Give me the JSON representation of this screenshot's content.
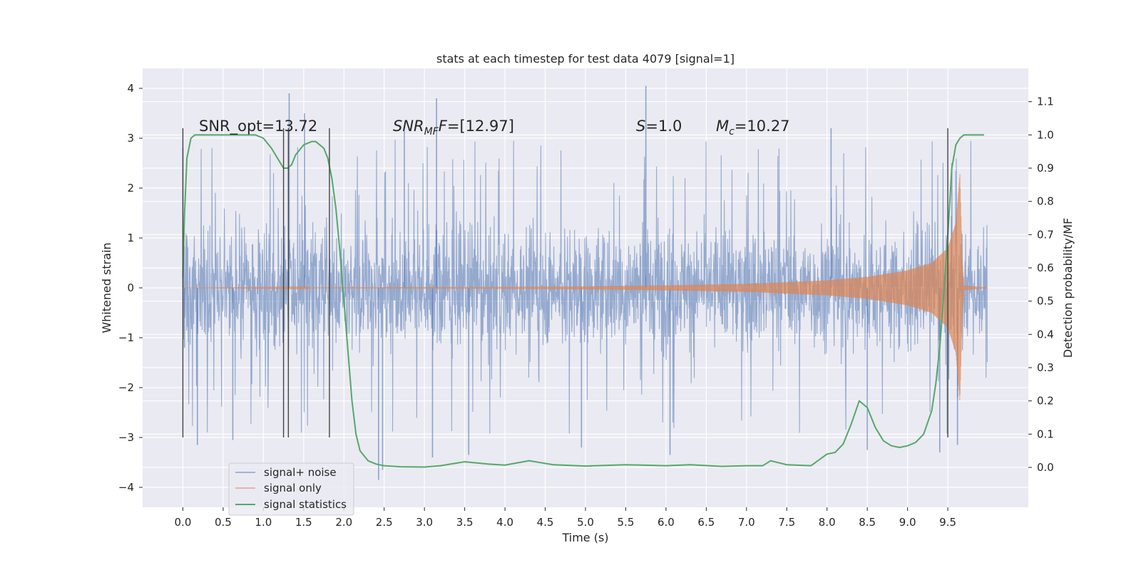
{
  "chart_data": {
    "type": "line",
    "title": "stats at each timestep for test data 4079 [signal=1]",
    "xlabel": "Time (s)",
    "ylabel": "Whitened strain",
    "ylabel_right": "Detection probability/MF",
    "xlim": [
      -0.5,
      10.5
    ],
    "ylim": [
      -4.4,
      4.4
    ],
    "ylim_right": [
      -0.12,
      1.2
    ],
    "x_ticks": [
      "0.0",
      "0.5",
      "1.0",
      "1.5",
      "2.0",
      "2.5",
      "3.0",
      "3.5",
      "4.0",
      "4.5",
      "5.0",
      "5.5",
      "6.0",
      "6.5",
      "7.0",
      "7.5",
      "8.0",
      "8.5",
      "9.0",
      "9.5"
    ],
    "y_ticks": [
      "−4",
      "−3",
      "−2",
      "−1",
      "0",
      "1",
      "2",
      "3",
      "4"
    ],
    "y_ticks_right": [
      "0.0",
      "0.1",
      "0.2",
      "0.3",
      "0.4",
      "0.5",
      "0.6",
      "0.7",
      "0.8",
      "0.9",
      "1.0",
      "1.1"
    ],
    "grid": true,
    "legend_position": "lower-left",
    "annotations": {
      "snr_opt": "SNR_opt=13.72",
      "snr_mf_main": "SNR",
      "snr_mf_sub": "MF",
      "snr_mf_value": "=[12.97]",
      "s_main": "S",
      "s_value": "=1.0",
      "mc_main": "M",
      "mc_sub": "c",
      "mc_value": "=10.27"
    },
    "vertical_markers": {
      "x": [
        0.0,
        1.25,
        1.31,
        1.82,
        9.5
      ],
      "y_range": [
        -3.0,
        3.2
      ]
    },
    "series": [
      {
        "name": "signal+ noise",
        "color": "#4c72b0",
        "description_values": {
          "x_range": [
            0.0,
            9.99
          ],
          "typical_envelope": [
            -1.3,
            1.4
          ],
          "spikes": [
            {
              "x": 0.0,
              "y": 2.8
            },
            {
              "x": 0.02,
              "y": -1.2
            },
            {
              "x": 0.18,
              "y": -3.15
            },
            {
              "x": 0.62,
              "y": -3.05
            },
            {
              "x": 1.32,
              "y": 3.9
            },
            {
              "x": 1.51,
              "y": 3.5
            },
            {
              "x": 2.43,
              "y": -3.85
            },
            {
              "x": 2.48,
              "y": -3.65
            },
            {
              "x": 2.75,
              "y": 3.15
            },
            {
              "x": 3.15,
              "y": 3.8
            },
            {
              "x": 3.1,
              "y": -3.4
            },
            {
              "x": 3.55,
              "y": -3.35
            },
            {
              "x": 4.95,
              "y": -3.2
            },
            {
              "x": 5.75,
              "y": 4.05
            },
            {
              "x": 6.05,
              "y": -3.35
            },
            {
              "x": 8.05,
              "y": 3.2
            },
            {
              "x": 8.5,
              "y": -3.25
            },
            {
              "x": 9.4,
              "y": -3.3
            },
            {
              "x": 9.55,
              "y": 2.5
            },
            {
              "x": 9.62,
              "y": -3.15
            }
          ]
        }
      },
      {
        "name": "signal only",
        "color": "#dd8452",
        "envelope": {
          "x": [
            0.0,
            4.0,
            5.0,
            6.0,
            7.0,
            8.0,
            8.5,
            9.0,
            9.3,
            9.5,
            9.6,
            9.65,
            9.68,
            9.7,
            10.0
          ],
          "amp": [
            0.0,
            0.02,
            0.03,
            0.05,
            0.08,
            0.15,
            0.22,
            0.35,
            0.5,
            0.8,
            1.3,
            2.3,
            0.6,
            0.05,
            0.0
          ]
        }
      },
      {
        "name": "signal statistics",
        "color": "#55a868",
        "axis": "right",
        "x": [
          0.0,
          0.02,
          0.05,
          0.1,
          0.15,
          0.2,
          0.3,
          0.5,
          0.7,
          0.9,
          1.0,
          1.1,
          1.2,
          1.25,
          1.3,
          1.35,
          1.4,
          1.5,
          1.6,
          1.65,
          1.7,
          1.75,
          1.8,
          1.85,
          1.9,
          1.95,
          2.0,
          2.05,
          2.1,
          2.15,
          2.2,
          2.3,
          2.4,
          2.5,
          2.7,
          3.0,
          3.2,
          3.5,
          3.8,
          4.0,
          4.3,
          4.6,
          5.0,
          5.5,
          6.0,
          6.3,
          6.7,
          7.0,
          7.2,
          7.3,
          7.5,
          7.8,
          8.0,
          8.1,
          8.2,
          8.3,
          8.4,
          8.5,
          8.6,
          8.7,
          8.8,
          8.9,
          9.0,
          9.1,
          9.2,
          9.3,
          9.35,
          9.4,
          9.45,
          9.5,
          9.55,
          9.6,
          9.65,
          9.7,
          9.8,
          9.95
        ],
        "y": [
          0.57,
          0.76,
          0.93,
          0.99,
          1.0,
          1.0,
          1.0,
          1.0,
          1.0,
          1.0,
          0.99,
          0.96,
          0.92,
          0.9,
          0.9,
          0.91,
          0.94,
          0.97,
          0.98,
          0.98,
          0.97,
          0.96,
          0.93,
          0.87,
          0.78,
          0.65,
          0.5,
          0.35,
          0.2,
          0.1,
          0.05,
          0.02,
          0.01,
          0.005,
          0.002,
          0.001,
          0.005,
          0.017,
          0.01,
          0.007,
          0.02,
          0.008,
          0.004,
          0.008,
          0.005,
          0.008,
          0.003,
          0.005,
          0.005,
          0.02,
          0.008,
          0.005,
          0.04,
          0.045,
          0.07,
          0.13,
          0.2,
          0.18,
          0.12,
          0.08,
          0.065,
          0.06,
          0.065,
          0.075,
          0.1,
          0.17,
          0.25,
          0.36,
          0.52,
          0.7,
          0.9,
          0.97,
          0.99,
          1.0,
          1.0,
          1.0
        ]
      }
    ]
  }
}
